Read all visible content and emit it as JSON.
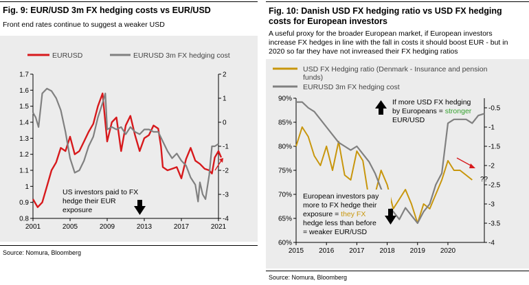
{
  "colors": {
    "red": "#d7191c",
    "gray": "#808080",
    "gold": "#c8960c",
    "green": "#33a02c",
    "bg": "#ececec"
  },
  "left": {
    "title": "Fig. 9: EUR/USD 3m FX hedging costs vs EUR/USD",
    "subtitle": "Front end rates continue to suggest a weaker USD",
    "source": "Source: Nomura, Bloomberg",
    "annotation": [
      "US investors paid to FX",
      "hedge their EUR",
      "exposure"
    ]
  },
  "right": {
    "title_lines": [
      "Fig. 10: Danish USD FX hedging ratio vs USD FX hedging",
      "costs for European investors"
    ],
    "subtitle_lines": [
      "A useful proxy for the broader European market, if European investors",
      "increase FX hedges in line with the fall in costs it should boost EUR - but in",
      "2020 so far they have not invreased their FX hedging ratios"
    ],
    "source": "Source: Nomura, Bloomberg",
    "annotation_top": [
      "If more USD FX hedging",
      "by Europeans = ",
      "stronger",
      "EUR/USD"
    ],
    "annotation_bottom": [
      "European investors pay",
      "more to FX hedge their",
      "exposure = ",
      "they FX",
      "hedge less than before",
      "= weaker EUR/USD"
    ],
    "qq": "??"
  },
  "chart_data": [
    {
      "type": "line",
      "title": "Fig. 9: EUR/USD 3m FX hedging costs vs EUR/USD",
      "x_ticks": [
        "2001",
        "2005",
        "2009",
        "2013",
        "2017",
        "2021"
      ],
      "xlim": [
        2001,
        2021
      ],
      "left_ticks": [
        "0.8",
        "0.9",
        "1",
        "1.1",
        "1.2",
        "1.3",
        "1.4",
        "1.5",
        "1.6",
        "1.7"
      ],
      "right_ticks": [
        "-4",
        "-3",
        "-2",
        "-1",
        "0",
        "1",
        "2"
      ],
      "ylim_left": [
        0.8,
        1.7
      ],
      "ylim_right": [
        -4,
        2
      ],
      "series": [
        {
          "name": "EURUSD",
          "axis": "left",
          "x": [
            2001,
            2001.5,
            2002,
            2002.5,
            2003,
            2003.5,
            2004,
            2004.5,
            2005,
            2005.5,
            2006,
            2006.5,
            2007,
            2007.5,
            2008,
            2008.5,
            2008.8,
            2009,
            2009.5,
            2010,
            2010.5,
            2011,
            2011.5,
            2012,
            2012.5,
            2013,
            2013.5,
            2014,
            2014.5,
            2014.8,
            2015,
            2015.5,
            2016,
            2016.5,
            2017,
            2017.5,
            2018,
            2018.5,
            2019,
            2019.5,
            2020,
            2020.3,
            2020.6,
            2021,
            2021.3
          ],
          "values": [
            0.92,
            0.87,
            0.9,
            1.0,
            1.1,
            1.15,
            1.24,
            1.22,
            1.31,
            1.2,
            1.22,
            1.28,
            1.34,
            1.39,
            1.5,
            1.58,
            1.4,
            1.28,
            1.4,
            1.43,
            1.22,
            1.38,
            1.44,
            1.32,
            1.22,
            1.3,
            1.32,
            1.38,
            1.36,
            1.25,
            1.12,
            1.1,
            1.11,
            1.12,
            1.05,
            1.17,
            1.24,
            1.16,
            1.14,
            1.11,
            1.1,
            1.08,
            1.18,
            1.22,
            1.18
          ]
        },
        {
          "name": "EURUSD 3m FX hedging cost",
          "axis": "right",
          "x": [
            2001,
            2001.3,
            2001.6,
            2002,
            2002.5,
            2003,
            2003.5,
            2004,
            2004.5,
            2005,
            2005.5,
            2006,
            2006.5,
            2007,
            2007.5,
            2008,
            2008.5,
            2008.8,
            2009,
            2009.5,
            2010,
            2010.5,
            2011,
            2011.5,
            2012,
            2012.5,
            2013,
            2013.5,
            2014,
            2014.5,
            2015,
            2015.5,
            2016,
            2016.5,
            2017,
            2017.5,
            2018,
            2018.5,
            2018.8,
            2019,
            2019.3,
            2019.6,
            2020,
            2020.3,
            2020.6,
            2021
          ],
          "values": [
            0.4,
            0.2,
            -0.2,
            1.2,
            1.4,
            1.3,
            1.0,
            0.5,
            -0.4,
            -1.5,
            -2.1,
            -2.0,
            -1.6,
            -1.0,
            -0.6,
            0.2,
            0.8,
            1.2,
            -0.3,
            -0.2,
            -0.3,
            -0.2,
            -0.5,
            -0.2,
            -0.4,
            -0.5,
            -0.3,
            -0.3,
            -0.4,
            -0.4,
            -0.8,
            -1.2,
            -1.5,
            -1.3,
            -1.6,
            -1.8,
            -2.3,
            -2.6,
            -3.3,
            -2.5,
            -3.0,
            -3.2,
            -2.2,
            -1.0,
            -1.0,
            -0.9
          ]
        }
      ],
      "arrows": [
        "up-right red arrow near 2021",
        "down black arrow near 2013"
      ]
    },
    {
      "type": "line",
      "title": "Fig. 10: Danish USD FX hedging ratio vs USD FX hedging costs for European investors",
      "x_ticks": [
        "2015",
        "2016",
        "2017",
        "2018",
        "2019",
        "2020"
      ],
      "xlim": [
        2015,
        2021.2
      ],
      "left_ticks": [
        "60%",
        "65%",
        "70%",
        "75%",
        "80%",
        "85%",
        "90%"
      ],
      "right_ticks": [
        "-4",
        "-3.5",
        "-3",
        "-2.5",
        "-2",
        "-1.5",
        "-1",
        "-0.5"
      ],
      "ylim_left": [
        60,
        90
      ],
      "ylim_right": [
        -4,
        -0.25
      ],
      "series": [
        {
          "name": "USD FX Hedging ratio (Denmark - Insurance and pension funds)",
          "axis": "left",
          "x": [
            2015,
            2015.2,
            2015.4,
            2015.6,
            2015.8,
            2016,
            2016.2,
            2016.4,
            2016.6,
            2016.8,
            2017,
            2017.2,
            2017.4,
            2017.6,
            2017.8,
            2018,
            2018.2,
            2018.4,
            2018.6,
            2018.8,
            2019,
            2019.2,
            2019.4,
            2019.6,
            2019.8,
            2020,
            2020.2,
            2020.4,
            2020.6,
            2020.8
          ],
          "values": [
            80,
            84,
            82,
            78,
            76,
            80,
            75,
            81,
            74,
            73,
            79,
            77,
            69,
            70,
            75,
            72,
            67,
            69,
            71,
            68,
            64,
            68,
            67,
            70,
            73,
            77,
            75,
            75,
            74,
            73
          ]
        },
        {
          "name": "EURUSD 3m FX hedging cost",
          "axis": "right",
          "x": [
            2015,
            2015.2,
            2015.4,
            2015.6,
            2015.8,
            2016,
            2016.2,
            2016.4,
            2016.6,
            2016.8,
            2017,
            2017.2,
            2017.4,
            2017.6,
            2017.8,
            2018,
            2018.2,
            2018.4,
            2018.6,
            2018.8,
            2019,
            2019.2,
            2019.4,
            2019.6,
            2019.8,
            2020,
            2020.2,
            2020.4,
            2020.6,
            2020.8,
            2021,
            2021.2
          ],
          "values": [
            -0.35,
            -0.35,
            -0.5,
            -0.6,
            -0.8,
            -1.0,
            -1.2,
            -1.4,
            -1.5,
            -1.6,
            -1.5,
            -1.7,
            -1.9,
            -2.2,
            -2.6,
            -3.0,
            -3.2,
            -3.4,
            -3.1,
            -3.3,
            -3.5,
            -3.2,
            -3.0,
            -2.5,
            -2.2,
            -0.9,
            -0.8,
            -0.8,
            -0.8,
            -0.9,
            -0.7,
            -0.65
          ]
        }
      ],
      "arrows": [
        "up black arrow near 2018",
        "down black arrow near 2018",
        "down-right red arrow near 2020.5"
      ]
    }
  ]
}
